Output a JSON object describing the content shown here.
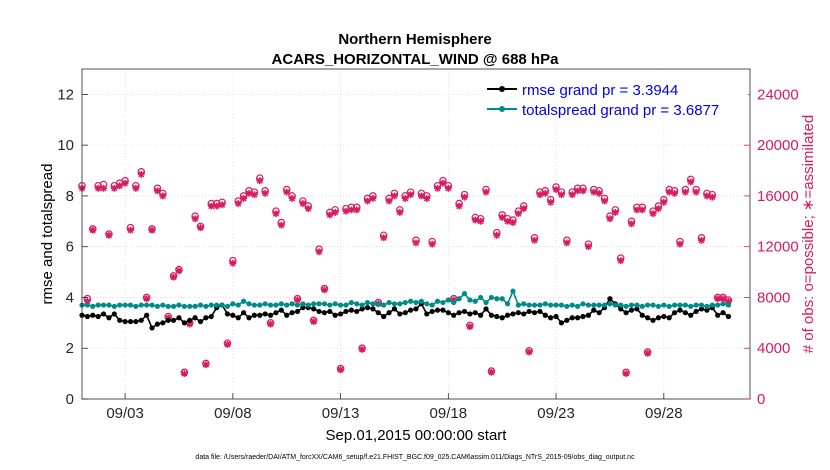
{
  "chart_data": {
    "type": "line",
    "title_line1": "Northern Hemisphere",
    "title_line2": "ACARS_HORIZONTAL_WIND @ 688 hPa",
    "xlabel": "Sep.01,2015 00:00:00 start",
    "ylabel_left": "rmse and totalspread",
    "ylabel_right": "# of obs: o=possible; ∗=assimilated",
    "footnote": "data file: /Users/raeder/DAI/ATM_forcXX/CAM6_setup/f.e21.FHIST_BGC.f09_025.CAM6assim.011/Diags_NTrS_2015-09/obs_diag_output.nc",
    "x_tick_labels": [
      "09/03",
      "09/08",
      "09/13",
      "09/18",
      "09/23",
      "09/28"
    ],
    "x_tick_days": [
      3,
      8,
      13,
      18,
      23,
      28
    ],
    "xlim": [
      1,
      32
    ],
    "ylim_left": [
      0,
      13
    ],
    "left_ticks": [
      0,
      2,
      4,
      6,
      8,
      10,
      12
    ],
    "ylim_right": [
      0,
      26000
    ],
    "right_ticks": [
      0,
      4000,
      8000,
      12000,
      16000,
      20000,
      24000
    ],
    "colors": {
      "rmse": "#000000",
      "totalspread": "#008b8b",
      "obs": "#d81b60",
      "right_axis": "#d81b60",
      "legend_text": "#0000ee"
    },
    "series": [
      {
        "name": "rmse grand pr = 3.3944",
        "key": "rmse",
        "x": [
          1.0,
          1.25,
          1.5,
          1.75,
          2.0,
          2.25,
          2.5,
          2.75,
          3.0,
          3.25,
          3.5,
          3.75,
          4.0,
          4.25,
          4.5,
          4.75,
          5.0,
          5.25,
          5.5,
          5.75,
          6.0,
          6.25,
          6.5,
          6.75,
          7.0,
          7.25,
          7.5,
          7.75,
          8.0,
          8.25,
          8.5,
          8.75,
          9.0,
          9.25,
          9.5,
          9.75,
          10.0,
          10.25,
          10.5,
          10.75,
          11.0,
          11.25,
          11.5,
          11.75,
          12.0,
          12.25,
          12.5,
          12.75,
          13.0,
          13.25,
          13.5,
          13.75,
          14.0,
          14.25,
          14.5,
          14.75,
          15.0,
          15.25,
          15.5,
          15.75,
          16.0,
          16.25,
          16.5,
          16.75,
          17.0,
          17.25,
          17.5,
          17.75,
          18.0,
          18.25,
          18.5,
          18.75,
          19.0,
          19.25,
          19.5,
          19.75,
          20.0,
          20.25,
          20.5,
          20.75,
          21.0,
          21.25,
          21.5,
          21.75,
          22.0,
          22.25,
          22.5,
          22.75,
          23.0,
          23.25,
          23.5,
          23.75,
          24.0,
          24.25,
          24.5,
          24.75,
          25.0,
          25.25,
          25.5,
          25.75,
          26.0,
          26.25,
          26.5,
          26.75,
          27.0,
          27.25,
          27.5,
          27.75,
          28.0,
          28.25,
          28.5,
          28.75,
          29.0,
          29.25,
          29.5,
          29.75,
          30.0,
          30.25,
          30.5,
          30.75,
          31.0
        ],
        "values": [
          3.3,
          3.25,
          3.3,
          3.25,
          3.35,
          3.2,
          3.35,
          3.1,
          3.05,
          3.05,
          3.05,
          3.1,
          3.3,
          2.8,
          2.95,
          3.0,
          3.1,
          3.1,
          3.2,
          3.0,
          3.1,
          3.2,
          3.05,
          3.2,
          3.25,
          3.6,
          3.7,
          3.35,
          3.3,
          3.2,
          3.4,
          3.2,
          3.3,
          3.3,
          3.35,
          3.3,
          3.4,
          3.5,
          3.3,
          3.4,
          3.45,
          3.6,
          3.6,
          3.55,
          3.45,
          3.4,
          3.45,
          3.3,
          3.35,
          3.45,
          3.5,
          3.45,
          3.55,
          3.6,
          3.55,
          3.4,
          3.25,
          3.4,
          3.55,
          3.35,
          3.4,
          3.5,
          3.55,
          3.75,
          3.35,
          3.45,
          3.5,
          3.5,
          3.4,
          3.3,
          3.4,
          3.45,
          3.35,
          3.4,
          3.3,
          3.55,
          3.3,
          3.25,
          3.2,
          3.3,
          3.35,
          3.4,
          3.35,
          3.45,
          3.4,
          3.45,
          3.3,
          3.2,
          3.25,
          3.0,
          3.1,
          3.2,
          3.2,
          3.25,
          3.3,
          3.5,
          3.4,
          3.6,
          3.95,
          3.75,
          3.55,
          3.4,
          3.5,
          3.55,
          3.3,
          3.2,
          3.1,
          3.2,
          3.25,
          3.2,
          3.4,
          3.5,
          3.4,
          3.3,
          3.45,
          3.55,
          3.5,
          3.6,
          3.3,
          3.4,
          3.25
        ]
      },
      {
        "name": "totalspread grand pr = 3.6877",
        "key": "totalspread",
        "x": [
          1.0,
          1.25,
          1.5,
          1.75,
          2.0,
          2.25,
          2.5,
          2.75,
          3.0,
          3.25,
          3.5,
          3.75,
          4.0,
          4.25,
          4.5,
          4.75,
          5.0,
          5.25,
          5.5,
          5.75,
          6.0,
          6.25,
          6.5,
          6.75,
          7.0,
          7.25,
          7.5,
          7.75,
          8.0,
          8.25,
          8.5,
          8.75,
          9.0,
          9.25,
          9.5,
          9.75,
          10.0,
          10.25,
          10.5,
          10.75,
          11.0,
          11.25,
          11.5,
          11.75,
          12.0,
          12.25,
          12.5,
          12.75,
          13.0,
          13.25,
          13.5,
          13.75,
          14.0,
          14.25,
          14.5,
          14.75,
          15.0,
          15.25,
          15.5,
          15.75,
          16.0,
          16.25,
          16.5,
          16.75,
          17.0,
          17.25,
          17.5,
          17.75,
          18.0,
          18.25,
          18.5,
          18.75,
          19.0,
          19.25,
          19.5,
          19.75,
          20.0,
          20.25,
          20.5,
          20.75,
          21.0,
          21.25,
          21.5,
          21.75,
          22.0,
          22.25,
          22.5,
          22.75,
          23.0,
          23.25,
          23.5,
          23.75,
          24.0,
          24.25,
          24.5,
          24.75,
          25.0,
          25.25,
          25.5,
          25.75,
          26.0,
          26.25,
          26.5,
          26.75,
          27.0,
          27.25,
          27.5,
          27.75,
          28.0,
          28.25,
          28.5,
          28.75,
          29.0,
          29.25,
          29.5,
          29.75,
          30.0,
          30.25,
          30.5,
          30.75,
          31.0
        ],
        "values": [
          3.7,
          3.7,
          3.65,
          3.7,
          3.7,
          3.7,
          3.65,
          3.7,
          3.7,
          3.7,
          3.65,
          3.7,
          3.7,
          3.7,
          3.65,
          3.7,
          3.65,
          3.65,
          3.7,
          3.65,
          3.65,
          3.65,
          3.7,
          3.65,
          3.7,
          3.7,
          3.7,
          3.65,
          3.75,
          3.7,
          3.85,
          3.75,
          3.7,
          3.7,
          3.75,
          3.7,
          3.7,
          3.75,
          3.7,
          3.75,
          3.7,
          3.75,
          3.7,
          3.75,
          3.75,
          3.75,
          3.7,
          3.75,
          3.7,
          3.7,
          3.8,
          3.75,
          3.7,
          3.8,
          3.75,
          3.75,
          3.7,
          3.8,
          3.75,
          3.75,
          3.8,
          3.85,
          3.8,
          3.85,
          3.75,
          3.7,
          3.85,
          3.8,
          3.9,
          3.8,
          3.95,
          4.15,
          3.9,
          3.85,
          4.0,
          3.8,
          4.0,
          3.95,
          3.95,
          3.75,
          4.25,
          3.7,
          3.75,
          3.7,
          3.7,
          3.7,
          3.75,
          3.7,
          3.7,
          3.7,
          3.65,
          3.7,
          3.65,
          3.75,
          3.7,
          3.7,
          3.7,
          3.7,
          3.75,
          3.7,
          3.7,
          3.65,
          3.7,
          3.7,
          3.65,
          3.7,
          3.7,
          3.65,
          3.7,
          3.65,
          3.7,
          3.7,
          3.7,
          3.65,
          3.7,
          3.7,
          3.65,
          3.7,
          3.7,
          3.75,
          3.7
        ]
      }
    ],
    "obs_counts": {
      "x": [
        1.0,
        1.25,
        1.5,
        1.75,
        2.0,
        2.25,
        2.5,
        2.75,
        3.0,
        3.25,
        3.5,
        3.75,
        4.0,
        4.25,
        4.5,
        4.75,
        5.0,
        5.25,
        5.5,
        5.75,
        6.0,
        6.25,
        6.5,
        6.75,
        7.0,
        7.25,
        7.5,
        7.75,
        8.0,
        8.25,
        8.5,
        8.75,
        9.0,
        9.25,
        9.5,
        9.75,
        10.0,
        10.25,
        10.5,
        10.75,
        11.0,
        11.25,
        11.5,
        11.75,
        12.0,
        12.25,
        12.5,
        12.75,
        13.0,
        13.25,
        13.5,
        13.75,
        14.0,
        14.25,
        14.5,
        14.75,
        15.0,
        15.25,
        15.5,
        15.75,
        16.0,
        16.25,
        16.5,
        16.75,
        17.0,
        17.25,
        17.5,
        17.75,
        18.0,
        18.25,
        18.5,
        18.75,
        19.0,
        19.25,
        19.5,
        19.75,
        20.0,
        20.25,
        20.5,
        20.75,
        21.0,
        21.25,
        21.5,
        21.75,
        22.0,
        22.25,
        22.5,
        22.75,
        23.0,
        23.25,
        23.5,
        23.75,
        24.0,
        24.25,
        24.5,
        24.75,
        25.0,
        25.25,
        25.5,
        25.75,
        26.0,
        26.25,
        26.5,
        26.75,
        27.0,
        27.25,
        27.5,
        27.75,
        28.0,
        28.25,
        28.5,
        28.75,
        29.0,
        29.25,
        29.5,
        29.75,
        30.0,
        30.25,
        30.5,
        30.75,
        31.0
      ],
      "possible": [
        16800,
        7900,
        13400,
        16800,
        16900,
        13000,
        16800,
        17000,
        17200,
        13500,
        16800,
        17900,
        8000,
        13400,
        16600,
        16200,
        6500,
        9700,
        10200,
        2100,
        6000,
        14400,
        13600,
        2800,
        15400,
        15400,
        15500,
        4400,
        10900,
        15600,
        16000,
        16400,
        16300,
        17400,
        16400,
        6000,
        14800,
        13900,
        16500,
        16000,
        7900,
        15600,
        15200,
        6200,
        11800,
        8700,
        14700,
        14900,
        2400,
        15000,
        15100,
        15100,
        4000,
        15800,
        16000,
        7600,
        12900,
        15800,
        16200,
        14900,
        16000,
        16300,
        12500,
        16200,
        16000,
        12400,
        16800,
        17200,
        16800,
        7900,
        15400,
        16100,
        5800,
        14300,
        14200,
        16500,
        2200,
        13100,
        14500,
        14200,
        14100,
        14800,
        15200,
        3800,
        12700,
        16300,
        16400,
        15700,
        16700,
        16300,
        12500,
        16300,
        16600,
        16600,
        12200,
        16500,
        16400,
        15800,
        14400,
        14900,
        11100,
        2100,
        14000,
        15100,
        15100,
        3700,
        14800,
        15200,
        15700,
        16500,
        16400,
        12400,
        16500,
        17300,
        16500,
        12700,
        16200,
        16100,
        8000,
        8000,
        7800
      ],
      "assimilated": [
        16600,
        7700,
        13300,
        16600,
        16600,
        12900,
        16600,
        16800,
        17000,
        13300,
        16600,
        17700,
        7900,
        13300,
        16400,
        16000,
        6400,
        9600,
        10100,
        2000,
        5900,
        14200,
        13500,
        2700,
        15200,
        15200,
        15300,
        4300,
        10700,
        15400,
        15800,
        16200,
        16100,
        17200,
        16200,
        5900,
        14600,
        13700,
        16300,
        15800,
        7800,
        15400,
        15000,
        6100,
        11600,
        8600,
        14500,
        14700,
        2300,
        14800,
        14900,
        14900,
        3900,
        15600,
        15800,
        7500,
        12700,
        15600,
        16000,
        14700,
        15800,
        16100,
        12300,
        16000,
        15800,
        12200,
        16600,
        17000,
        16600,
        7800,
        15200,
        15900,
        5700,
        14100,
        14000,
        16300,
        2100,
        12900,
        14300,
        14000,
        13900,
        14600,
        15000,
        3700,
        12500,
        16100,
        16200,
        15500,
        16500,
        16100,
        12300,
        16100,
        16400,
        16400,
        12000,
        16300,
        16200,
        15600,
        14200,
        14700,
        10900,
        2000,
        13800,
        14900,
        14900,
        3600,
        14600,
        15000,
        15500,
        16300,
        16200,
        12200,
        16300,
        17100,
        16300,
        12500,
        16000,
        15900,
        7900,
        7900,
        7700
      ]
    }
  }
}
